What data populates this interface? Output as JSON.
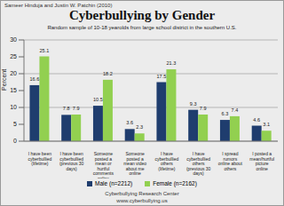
{
  "chart_data": {
    "type": "bar",
    "title": "Cyberbullying by Gender",
    "subtitle": "Random sample of 10-18 yearolds from large school district in the southern U.S.",
    "ylabel": "Percent",
    "annotations": [
      "Sameer Hinduja and Justin W. Patchin (2010)",
      "Cyberbullying Research Center",
      "www.cyberbullying.us"
    ],
    "categories": [
      "I have been cyberbullied (lifetime)",
      "I have been cyberbullied (previous 30 days)",
      "Someone posted a mean or hurtful comments online",
      "Someone posted a mean video about me online",
      "I have cyberbullied others (lifetime)",
      "I have cyberbullied others (previous 30 days)",
      "I spread rumors online about others",
      "I posted a mean/hurtful picture online"
    ],
    "series": [
      {
        "name": "Male (n=2212)",
        "color": "#1f3d6e",
        "values": [
          16.6,
          7.8,
          10.5,
          3.6,
          17.5,
          9.3,
          6.3,
          4.6
        ]
      },
      {
        "name": "Female (n=2162)",
        "color": "#92d050",
        "values": [
          25.1,
          7.9,
          18.2,
          2.3,
          21.3,
          7.9,
          7.4,
          3.1
        ]
      }
    ],
    "ylim": [
      0,
      30
    ],
    "yticks": [
      0,
      5,
      10,
      15,
      20,
      25,
      30
    ],
    "grid": true,
    "data_labels": true,
    "legend": "bottom"
  }
}
